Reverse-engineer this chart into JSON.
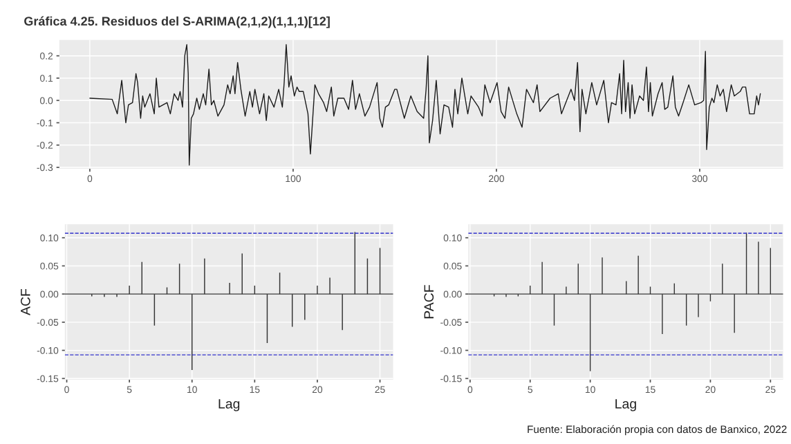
{
  "chart_data": [
    {
      "type": "line",
      "title": "Gráfica 4.25. Residuos del S-ARIMA(2,1,2)(1,1,1)[12]",
      "xlim": [
        -15,
        341
      ],
      "ylim": [
        -0.306,
        0.271
      ],
      "xticks": [
        0,
        100,
        200,
        300
      ],
      "yticks": [
        {
          "value": -0.3,
          "label": "-0.3"
        },
        {
          "value": -0.2,
          "label": "-0.2"
        },
        {
          "value": -0.1,
          "label": "-0.1"
        },
        {
          "value": 0,
          "label": "0.0"
        },
        {
          "value": 0.1,
          "label": "0.1"
        },
        {
          "value": 0.2,
          "label": "0.2"
        }
      ],
      "grid": true,
      "series": [
        {
          "color": "#1a1a1a",
          "x": [
            0,
            11,
            13.5,
            15.7,
            17.7,
            19,
            21,
            22.7,
            23.5,
            25,
            26,
            27,
            29.6,
            31.7,
            32.7,
            34,
            38,
            39.6,
            41.5,
            43.4,
            44.4,
            45.6,
            46.7,
            47.7,
            48.4,
            48.9,
            49.9,
            51,
            52.6,
            53.9,
            55.8,
            57,
            58.6,
            59.8,
            61,
            63,
            66,
            67.8,
            69,
            70.5,
            71.4,
            72.7,
            74.3,
            76.4,
            78.7,
            80,
            81.2,
            83.5,
            85.6,
            86.8,
            88,
            90.6,
            92.9,
            94.7,
            95.6,
            96.6,
            97.9,
            99,
            100.6,
            101.9,
            103,
            105,
            107.3,
            108.5,
            110.7,
            112.5,
            115,
            116.5,
            118.8,
            120,
            122,
            125,
            127.3,
            129.2,
            130.7,
            132.6,
            135.3,
            137.6,
            141.3,
            142.6,
            143.9,
            145.4,
            147,
            150,
            151,
            154.7,
            157.9,
            161,
            164.2,
            165.4,
            166.3,
            167,
            168.6,
            170.4,
            172.3,
            174.2,
            176.5,
            178.4,
            179.6,
            181,
            183,
            185.9,
            187.5,
            191.2,
            193,
            194.3,
            196.9,
            200.3,
            202.3,
            204.2,
            206,
            210,
            212.6,
            214.8,
            218.2,
            220,
            221.4,
            226.4,
            230.4,
            232,
            236.7,
            238.4,
            239.9,
            241.1,
            242.1,
            244,
            246.9,
            249.3,
            252.8,
            255.1,
            256.6,
            258.8,
            260.6,
            261.6,
            262.6,
            263.5,
            264.8,
            265.7,
            266.7,
            268,
            270.4,
            272.3,
            273.8,
            274.8,
            275.7,
            276.7,
            279.5,
            281.5,
            282.8,
            284.3,
            286.8,
            288,
            289.6,
            291.8,
            294.6,
            297.5,
            300.6,
            301.9,
            302.8,
            303.4,
            304.7,
            306,
            307,
            308.6,
            310,
            311.6,
            313.2,
            315.5,
            317,
            319.9,
            321,
            322.6,
            324.5,
            326.8,
            328,
            328.9,
            329.8
          ],
          "values": [
            0.01,
            0.005,
            -0.06,
            0.09,
            -0.1,
            -0.02,
            -0.01,
            0.12,
            0.08,
            -0.08,
            0.02,
            -0.03,
            0.03,
            -0.06,
            0.1,
            -0.03,
            -0.01,
            -0.06,
            0.03,
            0,
            0.04,
            -0.03,
            0.2,
            0.25,
            0.12,
            -0.29,
            -0.08,
            -0.06,
            0.01,
            -0.04,
            0.03,
            -0.02,
            0.14,
            -0.02,
            0,
            -0.07,
            -0.02,
            0.07,
            0.03,
            0.11,
            0.03,
            0.17,
            0.05,
            -0.07,
            0.04,
            -0.03,
            0.05,
            -0.06,
            0.03,
            -0.09,
            0.02,
            -0.03,
            0.05,
            -0.03,
            0.08,
            0.25,
            0.06,
            0.11,
            0.02,
            0.06,
            0.04,
            0.04,
            -0.06,
            -0.24,
            0.07,
            0.03,
            -0.01,
            -0.05,
            0.06,
            -0.07,
            0.01,
            0.01,
            -0.04,
            0.09,
            -0.04,
            0.03,
            -0.07,
            -0.03,
            0.08,
            -0.08,
            -0.12,
            -0.03,
            -0.02,
            0.05,
            0.05,
            -0.08,
            0.02,
            -0.05,
            -0.08,
            0.05,
            0.2,
            -0.19,
            -0.09,
            0.09,
            -0.15,
            -0.02,
            -0.03,
            -0.12,
            0.05,
            -0.06,
            0.1,
            -0.06,
            0.02,
            -0.03,
            -0.07,
            0.07,
            -0.01,
            0.08,
            -0.05,
            -0.08,
            0.06,
            -0.06,
            -0.12,
            0.05,
            -0.01,
            0.07,
            -0.05,
            0.01,
            0.03,
            -0.06,
            0.05,
            0,
            0.17,
            -0.14,
            0.05,
            -0.06,
            0.08,
            -0.02,
            0.09,
            -0.1,
            -0.01,
            -0.02,
            0.12,
            -0.06,
            0.18,
            -0.05,
            0.08,
            -0.08,
            0.07,
            -0.06,
            0.02,
            0,
            0.15,
            -0.05,
            0.08,
            -0.07,
            0.03,
            0.08,
            -0.04,
            -0.03,
            0.11,
            -0.03,
            -0.07,
            -0.01,
            0.07,
            -0.02,
            -0.01,
            0,
            0.22,
            -0.22,
            -0.03,
            0.01,
            -0.01,
            0.07,
            0.02,
            0.05,
            -0.05,
            0.07,
            0.02,
            0.04,
            0.06,
            0.06,
            -0.06,
            -0.06,
            0.02,
            -0.02,
            0.03
          ]
        }
      ]
    },
    {
      "type": "bar",
      "xlabel": "Lag",
      "ylabel": "ACF",
      "xlim": [
        -0.15,
        26.05
      ],
      "ylim": [
        -0.152,
        0.124
      ],
      "xticks": [
        0,
        5,
        10,
        15,
        20,
        25
      ],
      "yticks": [
        {
          "value": -0.15,
          "label": "-0.15"
        },
        {
          "value": -0.1,
          "label": "-0.10"
        },
        {
          "value": -0.05,
          "label": "-0.05"
        },
        {
          "value": 0,
          "label": "0.00"
        },
        {
          "value": 0.05,
          "label": "0.05"
        },
        {
          "value": 0.1,
          "label": "0.10"
        }
      ],
      "grid": true,
      "ref_lines": [
        {
          "axis": "y",
          "value": 0.108,
          "color": "#3333cc",
          "line_style": "dashed"
        },
        {
          "axis": "y",
          "value": -0.108,
          "color": "#3333cc",
          "line_style": "dashed"
        }
      ],
      "series": [
        {
          "color": "#333333",
          "x": [
            2,
            3,
            4,
            5,
            6,
            7,
            8,
            9,
            10,
            11,
            13,
            14,
            15,
            16,
            17,
            18,
            19,
            20,
            21,
            22,
            23,
            24,
            25
          ],
          "values": [
            -0.004,
            -0.005,
            -0.005,
            0.015,
            0.057,
            -0.056,
            0.012,
            0.054,
            -0.135,
            0.063,
            0.02,
            0.072,
            0.015,
            -0.087,
            0.038,
            -0.058,
            -0.046,
            0.015,
            0.029,
            -0.064,
            0.11,
            0.063,
            0.082
          ]
        }
      ]
    },
    {
      "type": "bar",
      "xlabel": "Lag",
      "ylabel": "PACF",
      "xlim": [
        -0.15,
        26.05
      ],
      "ylim": [
        -0.152,
        0.124
      ],
      "xticks": [
        0,
        5,
        10,
        15,
        20,
        25
      ],
      "yticks": [
        {
          "value": -0.15,
          "label": "-0.15"
        },
        {
          "value": -0.1,
          "label": "-0.10"
        },
        {
          "value": -0.05,
          "label": "-0.05"
        },
        {
          "value": 0,
          "label": "0.00"
        },
        {
          "value": 0.05,
          "label": "0.05"
        },
        {
          "value": 0.1,
          "label": "0.10"
        }
      ],
      "grid": true,
      "ref_lines": [
        {
          "axis": "y",
          "value": 0.108,
          "color": "#3333cc",
          "line_style": "dashed"
        },
        {
          "axis": "y",
          "value": -0.108,
          "color": "#3333cc",
          "line_style": "dashed"
        }
      ],
      "annotations": [
        "Fuente: Elaboración propia con datos de Banxico, 2022"
      ],
      "series": [
        {
          "color": "#333333",
          "x": [
            2,
            3,
            4,
            5,
            6,
            7,
            8,
            9,
            10,
            11,
            13,
            14,
            15,
            16,
            17,
            18,
            19,
            20,
            21,
            22,
            23,
            24,
            25
          ],
          "values": [
            -0.004,
            -0.005,
            -0.004,
            0.015,
            0.057,
            -0.056,
            0.013,
            0.054,
            -0.137,
            0.065,
            0.023,
            0.068,
            0.013,
            -0.071,
            0.019,
            -0.056,
            -0.041,
            -0.013,
            0.054,
            -0.069,
            0.109,
            0.093,
            0.082
          ]
        }
      ]
    }
  ]
}
